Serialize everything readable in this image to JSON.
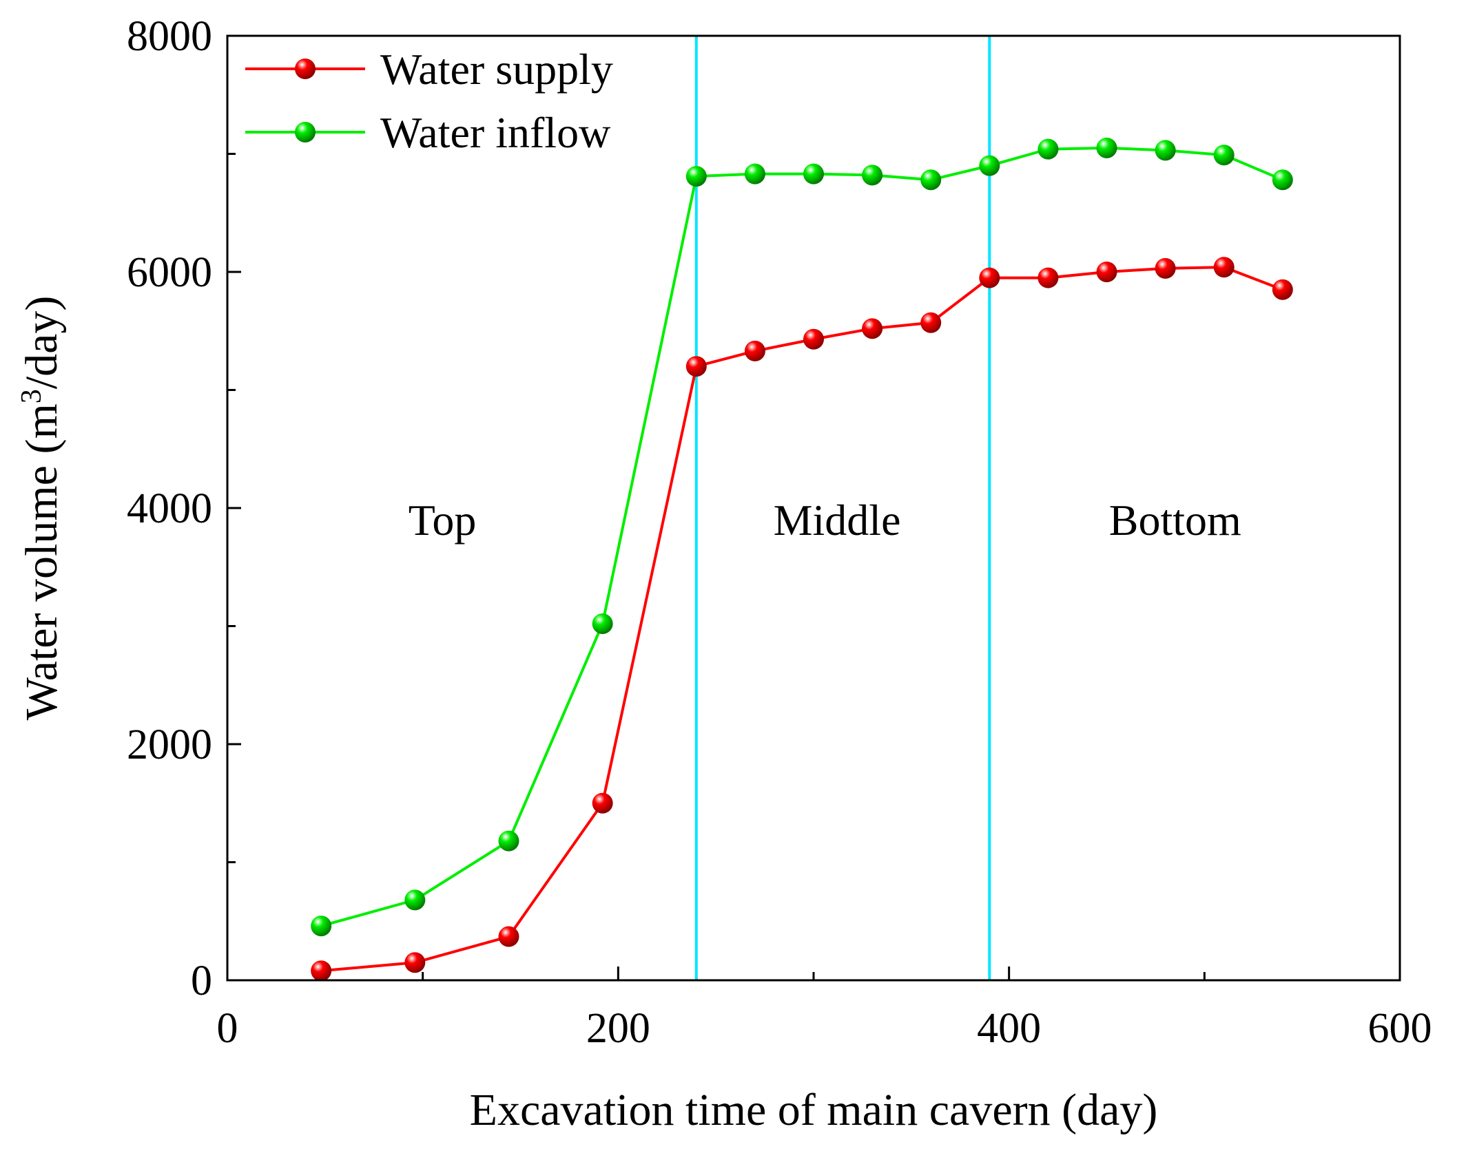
{
  "chart_data": {
    "type": "line",
    "title": "",
    "xlabel": "Excavation time of main cavern (day)",
    "ylabel_main": "Water volume (m",
    "ylabel_sup": "3",
    "ylabel_end": "/day)",
    "xlim": [
      0,
      600
    ],
    "ylim": [
      0,
      8000
    ],
    "x_ticks": [
      0,
      200,
      400,
      600
    ],
    "y_ticks": [
      0,
      2000,
      4000,
      6000,
      8000
    ],
    "legend_position": "top-left",
    "series": [
      {
        "name": "Water supply",
        "color": "#ff0000",
        "x": [
          48,
          96,
          144,
          192,
          240,
          270,
          300,
          330,
          360,
          390,
          420,
          450,
          480,
          510,
          540
        ],
        "values": [
          80,
          150,
          370,
          1500,
          5200,
          5330,
          5430,
          5520,
          5570,
          5950,
          5950,
          6000,
          6030,
          6040,
          5850
        ]
      },
      {
        "name": "Water inflow",
        "color": "#00ee00",
        "x": [
          48,
          96,
          144,
          192,
          240,
          270,
          300,
          330,
          360,
          390,
          420,
          450,
          480,
          510,
          540
        ],
        "values": [
          460,
          680,
          1180,
          3020,
          6810,
          6830,
          6830,
          6820,
          6780,
          6900,
          7040,
          7050,
          7030,
          6990,
          6780
        ]
      }
    ],
    "vertical_lines": [
      {
        "x": 240,
        "color": "#00e5ff"
      },
      {
        "x": 390,
        "color": "#00e5ff"
      }
    ],
    "region_labels": [
      {
        "text": "Top",
        "x": 110,
        "y": 3900
      },
      {
        "text": "Middle",
        "x": 312,
        "y": 3900
      },
      {
        "text": "Bottom",
        "x": 485,
        "y": 3900
      }
    ]
  }
}
